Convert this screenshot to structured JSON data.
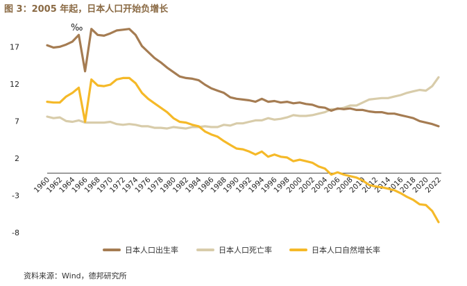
{
  "title": "图 3：2005 年起，日本人口开始负增长",
  "source": "资料来源：Wind，德邦研究所",
  "chart_data": {
    "type": "line",
    "unit_label": "‰",
    "ylim": [
      -8,
      19
    ],
    "yticks": [
      -8,
      -3,
      2,
      7,
      12,
      17
    ],
    "grid": false,
    "legend_position": "bottom",
    "x": [
      1960,
      1961,
      1962,
      1963,
      1964,
      1965,
      1966,
      1967,
      1968,
      1969,
      1970,
      1971,
      1972,
      1973,
      1974,
      1975,
      1976,
      1977,
      1978,
      1979,
      1980,
      1981,
      1982,
      1983,
      1984,
      1985,
      1986,
      1987,
      1988,
      1989,
      1990,
      1991,
      1992,
      1993,
      1994,
      1995,
      1996,
      1997,
      1998,
      1999,
      2000,
      2001,
      2002,
      2003,
      2004,
      2005,
      2006,
      2007,
      2008,
      2009,
      2010,
      2011,
      2012,
      2013,
      2014,
      2015,
      2016,
      2017,
      2018,
      2019,
      2020,
      2021,
      2022
    ],
    "xticks": [
      "1960",
      "1962",
      "1964",
      "1966",
      "1968",
      "1970",
      "1972",
      "1974",
      "1976",
      "1978",
      "1980",
      "1982",
      "1984",
      "1986",
      "1988",
      "1990",
      "1992",
      "1994",
      "1996",
      "1998",
      "2000",
      "2002",
      "2004",
      "2006",
      "2008",
      "2010",
      "2012",
      "2014",
      "2016",
      "2018",
      "2020",
      "2022"
    ],
    "series": [
      {
        "name": "日本人口出生率",
        "color": "#a57c52",
        "values": [
          17.2,
          16.9,
          17.0,
          17.3,
          17.7,
          18.6,
          13.7,
          19.4,
          18.6,
          18.5,
          18.8,
          19.2,
          19.3,
          19.4,
          18.6,
          17.1,
          16.3,
          15.5,
          14.9,
          14.2,
          13.6,
          13.0,
          12.8,
          12.7,
          12.5,
          11.9,
          11.4,
          11.1,
          10.8,
          10.2,
          10.0,
          9.9,
          9.8,
          9.6,
          10.0,
          9.6,
          9.7,
          9.5,
          9.6,
          9.4,
          9.5,
          9.3,
          9.2,
          8.9,
          8.8,
          8.4,
          8.7,
          8.6,
          8.7,
          8.5,
          8.5,
          8.3,
          8.2,
          8.2,
          8.0,
          8.0,
          7.8,
          7.6,
          7.4,
          7.0,
          6.8,
          6.6,
          6.3
        ]
      },
      {
        "name": "日本人口死亡率",
        "color": "#d8ccaa",
        "values": [
          7.6,
          7.4,
          7.5,
          7.0,
          6.9,
          7.1,
          6.8,
          6.8,
          6.8,
          6.8,
          6.9,
          6.6,
          6.5,
          6.6,
          6.5,
          6.3,
          6.3,
          6.1,
          6.1,
          6.0,
          6.2,
          6.1,
          6.0,
          6.2,
          6.2,
          6.3,
          6.2,
          6.2,
          6.5,
          6.4,
          6.7,
          6.7,
          6.9,
          7.1,
          7.1,
          7.4,
          7.2,
          7.3,
          7.5,
          7.8,
          7.7,
          7.7,
          7.8,
          8.0,
          8.2,
          8.6,
          8.6,
          8.8,
          9.1,
          9.1,
          9.5,
          9.9,
          10.0,
          10.1,
          10.1,
          10.3,
          10.5,
          10.8,
          11.0,
          11.2,
          11.1,
          11.7,
          12.9
        ]
      },
      {
        "name": "日本人口自然增长率",
        "color": "#f5b928",
        "values": [
          9.6,
          9.5,
          9.5,
          10.3,
          10.8,
          11.5,
          6.9,
          12.6,
          11.8,
          11.7,
          11.9,
          12.6,
          12.8,
          12.8,
          12.1,
          10.8,
          10.0,
          9.4,
          8.8,
          8.2,
          7.4,
          6.9,
          6.8,
          6.5,
          6.3,
          5.6,
          5.2,
          4.9,
          4.3,
          3.8,
          3.3,
          3.2,
          2.9,
          2.5,
          2.9,
          2.2,
          2.5,
          2.2,
          2.1,
          1.6,
          1.8,
          1.6,
          1.4,
          0.9,
          0.6,
          -0.2,
          0.1,
          -0.2,
          -0.4,
          -0.6,
          -1.0,
          -1.6,
          -1.8,
          -1.9,
          -2.1,
          -2.3,
          -2.7,
          -3.2,
          -3.6,
          -4.2,
          -4.3,
          -5.1,
          -6.6
        ]
      }
    ]
  }
}
